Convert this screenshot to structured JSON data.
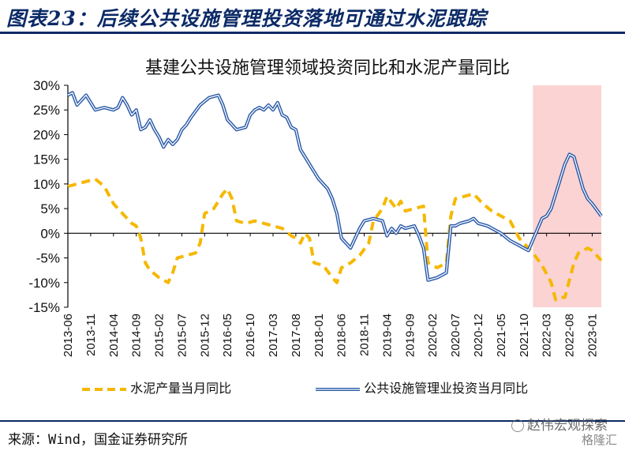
{
  "figure_title": "图表23：后续公共设施管理投资落地可通过水泥跟踪",
  "source": "来源：Wind，国金证券研究所",
  "watermark": "赵伟宏观探索",
  "watermark2": "格隆汇",
  "colors": {
    "cement": "#f5b800",
    "infra": "#2a5aa8",
    "infra_inner": "#ffffff",
    "highlight": "#fbd3d3",
    "axis": "#000000",
    "title_rule": "#0b2a66"
  },
  "chart_data": {
    "type": "line",
    "title": "基建公共设施管理领域投资同比和水泥产量同比",
    "ylim": [
      -15,
      30
    ],
    "yticks": [
      30,
      25,
      20,
      15,
      10,
      5,
      0,
      -5,
      -10,
      -15
    ],
    "ytick_labels": [
      "30%",
      "25%",
      "20%",
      "15%",
      "10%",
      "5%",
      "0%",
      "-5%",
      "-10%",
      "-15%"
    ],
    "x_tick_labels": [
      "2013-06",
      "2013-11",
      "2014-04",
      "2014-09",
      "2015-02",
      "2015-07",
      "2015-12",
      "2016-05",
      "2016-10",
      "2017-03",
      "2017-08",
      "2018-01",
      "2018-06",
      "2018-11",
      "2019-04",
      "2019-09",
      "2020-02",
      "2020-07",
      "2020-12",
      "2021-05",
      "2021-10",
      "2022-03",
      "2022-08",
      "2023-01"
    ],
    "x_start": "2013-06",
    "x_end": "2023-03",
    "highlight_range": [
      "2021-12",
      "2023-03"
    ],
    "series": [
      {
        "name": "水泥产量当月同比",
        "style": "dashed",
        "points": [
          [
            "2013-06",
            9.5
          ],
          [
            "2013-10",
            10.5
          ],
          [
            "2013-12",
            11
          ],
          [
            "2014-02",
            9.5
          ],
          [
            "2014-04",
            6
          ],
          [
            "2014-06",
            4
          ],
          [
            "2014-08",
            2
          ],
          [
            "2014-09",
            1.5
          ],
          [
            "2014-10",
            -1
          ],
          [
            "2014-11",
            -6
          ],
          [
            "2014-12",
            -7.5
          ],
          [
            "2015-02",
            -9
          ],
          [
            "2015-04",
            -10
          ],
          [
            "2015-05",
            -8
          ],
          [
            "2015-06",
            -5
          ],
          [
            "2015-08",
            -4.5
          ],
          [
            "2015-10",
            -4
          ],
          [
            "2015-11",
            -2
          ],
          [
            "2015-12",
            4
          ],
          [
            "2016-02",
            5
          ],
          [
            "2016-04",
            8
          ],
          [
            "2016-05",
            9
          ],
          [
            "2016-06",
            7
          ],
          [
            "2016-07",
            2.5
          ],
          [
            "2016-09",
            2
          ],
          [
            "2016-11",
            2.5
          ],
          [
            "2017-01",
            2
          ],
          [
            "2017-03",
            1.5
          ],
          [
            "2017-05",
            1
          ],
          [
            "2017-07",
            -0.5
          ],
          [
            "2017-08",
            -1
          ],
          [
            "2017-09",
            -2
          ],
          [
            "2017-10",
            0
          ],
          [
            "2017-11",
            -1
          ],
          [
            "2017-12",
            -6
          ],
          [
            "2018-02",
            -6.5
          ],
          [
            "2018-04",
            -9
          ],
          [
            "2018-05",
            -10
          ],
          [
            "2018-06",
            -7
          ],
          [
            "2018-08",
            -6
          ],
          [
            "2018-10",
            -4.5
          ],
          [
            "2018-12",
            -2
          ],
          [
            "2019-01",
            2.5
          ],
          [
            "2019-03",
            5
          ],
          [
            "2019-04",
            7.5
          ],
          [
            "2019-06",
            5
          ],
          [
            "2019-07",
            6.5
          ],
          [
            "2019-08",
            4.5
          ],
          [
            "2019-10",
            5
          ],
          [
            "2019-12",
            5.5
          ],
          [
            "2020-01",
            -6
          ],
          [
            "2020-03",
            -7
          ],
          [
            "2020-05",
            -6
          ],
          [
            "2020-06",
            3.5
          ],
          [
            "2020-07",
            7
          ],
          [
            "2020-09",
            7.5
          ],
          [
            "2020-11",
            8
          ],
          [
            "2021-01",
            6
          ],
          [
            "2021-03",
            4.5
          ],
          [
            "2021-05",
            3.5
          ],
          [
            "2021-07",
            2.5
          ],
          [
            "2021-09",
            -1
          ],
          [
            "2021-10",
            -2
          ],
          [
            "2021-12",
            -4
          ],
          [
            "2022-02",
            -6.5
          ],
          [
            "2022-04",
            -10
          ],
          [
            "2022-05",
            -13.5
          ],
          [
            "2022-06",
            -13
          ],
          [
            "2022-07",
            -13
          ],
          [
            "2022-09",
            -6
          ],
          [
            "2022-10",
            -4
          ],
          [
            "2022-11",
            -3.5
          ],
          [
            "2022-12",
            -3
          ],
          [
            "2023-01",
            -3.5
          ],
          [
            "2023-03",
            -5.5
          ]
        ]
      },
      {
        "name": "公共设施管理业投资当月同比",
        "style": "double",
        "points": [
          [
            "2013-06",
            28
          ],
          [
            "2013-07",
            28.5
          ],
          [
            "2013-08",
            26
          ],
          [
            "2013-10",
            28
          ],
          [
            "2013-12",
            25
          ],
          [
            "2014-02",
            25.5
          ],
          [
            "2014-04",
            25
          ],
          [
            "2014-05",
            25.5
          ],
          [
            "2014-06",
            27.5
          ],
          [
            "2014-07",
            26
          ],
          [
            "2014-08",
            24
          ],
          [
            "2014-09",
            25
          ],
          [
            "2014-10",
            21
          ],
          [
            "2014-11",
            21.5
          ],
          [
            "2014-12",
            23
          ],
          [
            "2015-01",
            21
          ],
          [
            "2015-02",
            19.5
          ],
          [
            "2015-03",
            17.5
          ],
          [
            "2015-04",
            19
          ],
          [
            "2015-05",
            18
          ],
          [
            "2015-06",
            19
          ],
          [
            "2015-07",
            21
          ],
          [
            "2015-08",
            22
          ],
          [
            "2015-09",
            23.5
          ],
          [
            "2015-11",
            26
          ],
          [
            "2016-01",
            27.5
          ],
          [
            "2016-03",
            28
          ],
          [
            "2016-04",
            26
          ],
          [
            "2016-05",
            23
          ],
          [
            "2016-07",
            21
          ],
          [
            "2016-09",
            21.5
          ],
          [
            "2016-10",
            24
          ],
          [
            "2016-11",
            25
          ],
          [
            "2016-12",
            25.5
          ],
          [
            "2017-01",
            25
          ],
          [
            "2017-02",
            26
          ],
          [
            "2017-03",
            25
          ],
          [
            "2017-04",
            26.5
          ],
          [
            "2017-05",
            24
          ],
          [
            "2017-06",
            23.5
          ],
          [
            "2017-07",
            21.5
          ],
          [
            "2017-08",
            21
          ],
          [
            "2017-09",
            17
          ],
          [
            "2017-11",
            14
          ],
          [
            "2017-12",
            12.5
          ],
          [
            "2018-01",
            11
          ],
          [
            "2018-03",
            9
          ],
          [
            "2018-04",
            7
          ],
          [
            "2018-05",
            4
          ],
          [
            "2018-06",
            -1
          ],
          [
            "2018-08",
            -3
          ],
          [
            "2018-10",
            1
          ],
          [
            "2018-11",
            2.5
          ],
          [
            "2019-01",
            3
          ],
          [
            "2019-03",
            2.5
          ],
          [
            "2019-04",
            -0.5
          ],
          [
            "2019-05",
            1
          ],
          [
            "2019-06",
            0
          ],
          [
            "2019-07",
            1.5
          ],
          [
            "2019-08",
            1
          ],
          [
            "2019-10",
            1.5
          ],
          [
            "2019-11",
            -0.5
          ],
          [
            "2019-12",
            -3
          ],
          [
            "2020-01",
            -9.5
          ],
          [
            "2020-03",
            -9
          ],
          [
            "2020-05",
            -8
          ],
          [
            "2020-06",
            1.5
          ],
          [
            "2020-07",
            1.5
          ],
          [
            "2020-08",
            2
          ],
          [
            "2020-10",
            2.5
          ],
          [
            "2020-11",
            3
          ],
          [
            "2020-12",
            2
          ],
          [
            "2021-02",
            1.5
          ],
          [
            "2021-03",
            1
          ],
          [
            "2021-05",
            0
          ],
          [
            "2021-07",
            -1.5
          ],
          [
            "2021-09",
            -2.5
          ],
          [
            "2021-11",
            -3.5
          ],
          [
            "2022-02",
            3
          ],
          [
            "2022-03",
            3.5
          ],
          [
            "2022-04",
            5
          ],
          [
            "2022-05",
            8
          ],
          [
            "2022-06",
            11
          ],
          [
            "2022-07",
            14
          ],
          [
            "2022-08",
            16
          ],
          [
            "2022-09",
            15.5
          ],
          [
            "2022-11",
            9
          ],
          [
            "2022-12",
            7
          ],
          [
            "2023-01",
            6
          ],
          [
            "2023-03",
            3.5
          ]
        ]
      }
    ],
    "legend_position": "bottom"
  }
}
